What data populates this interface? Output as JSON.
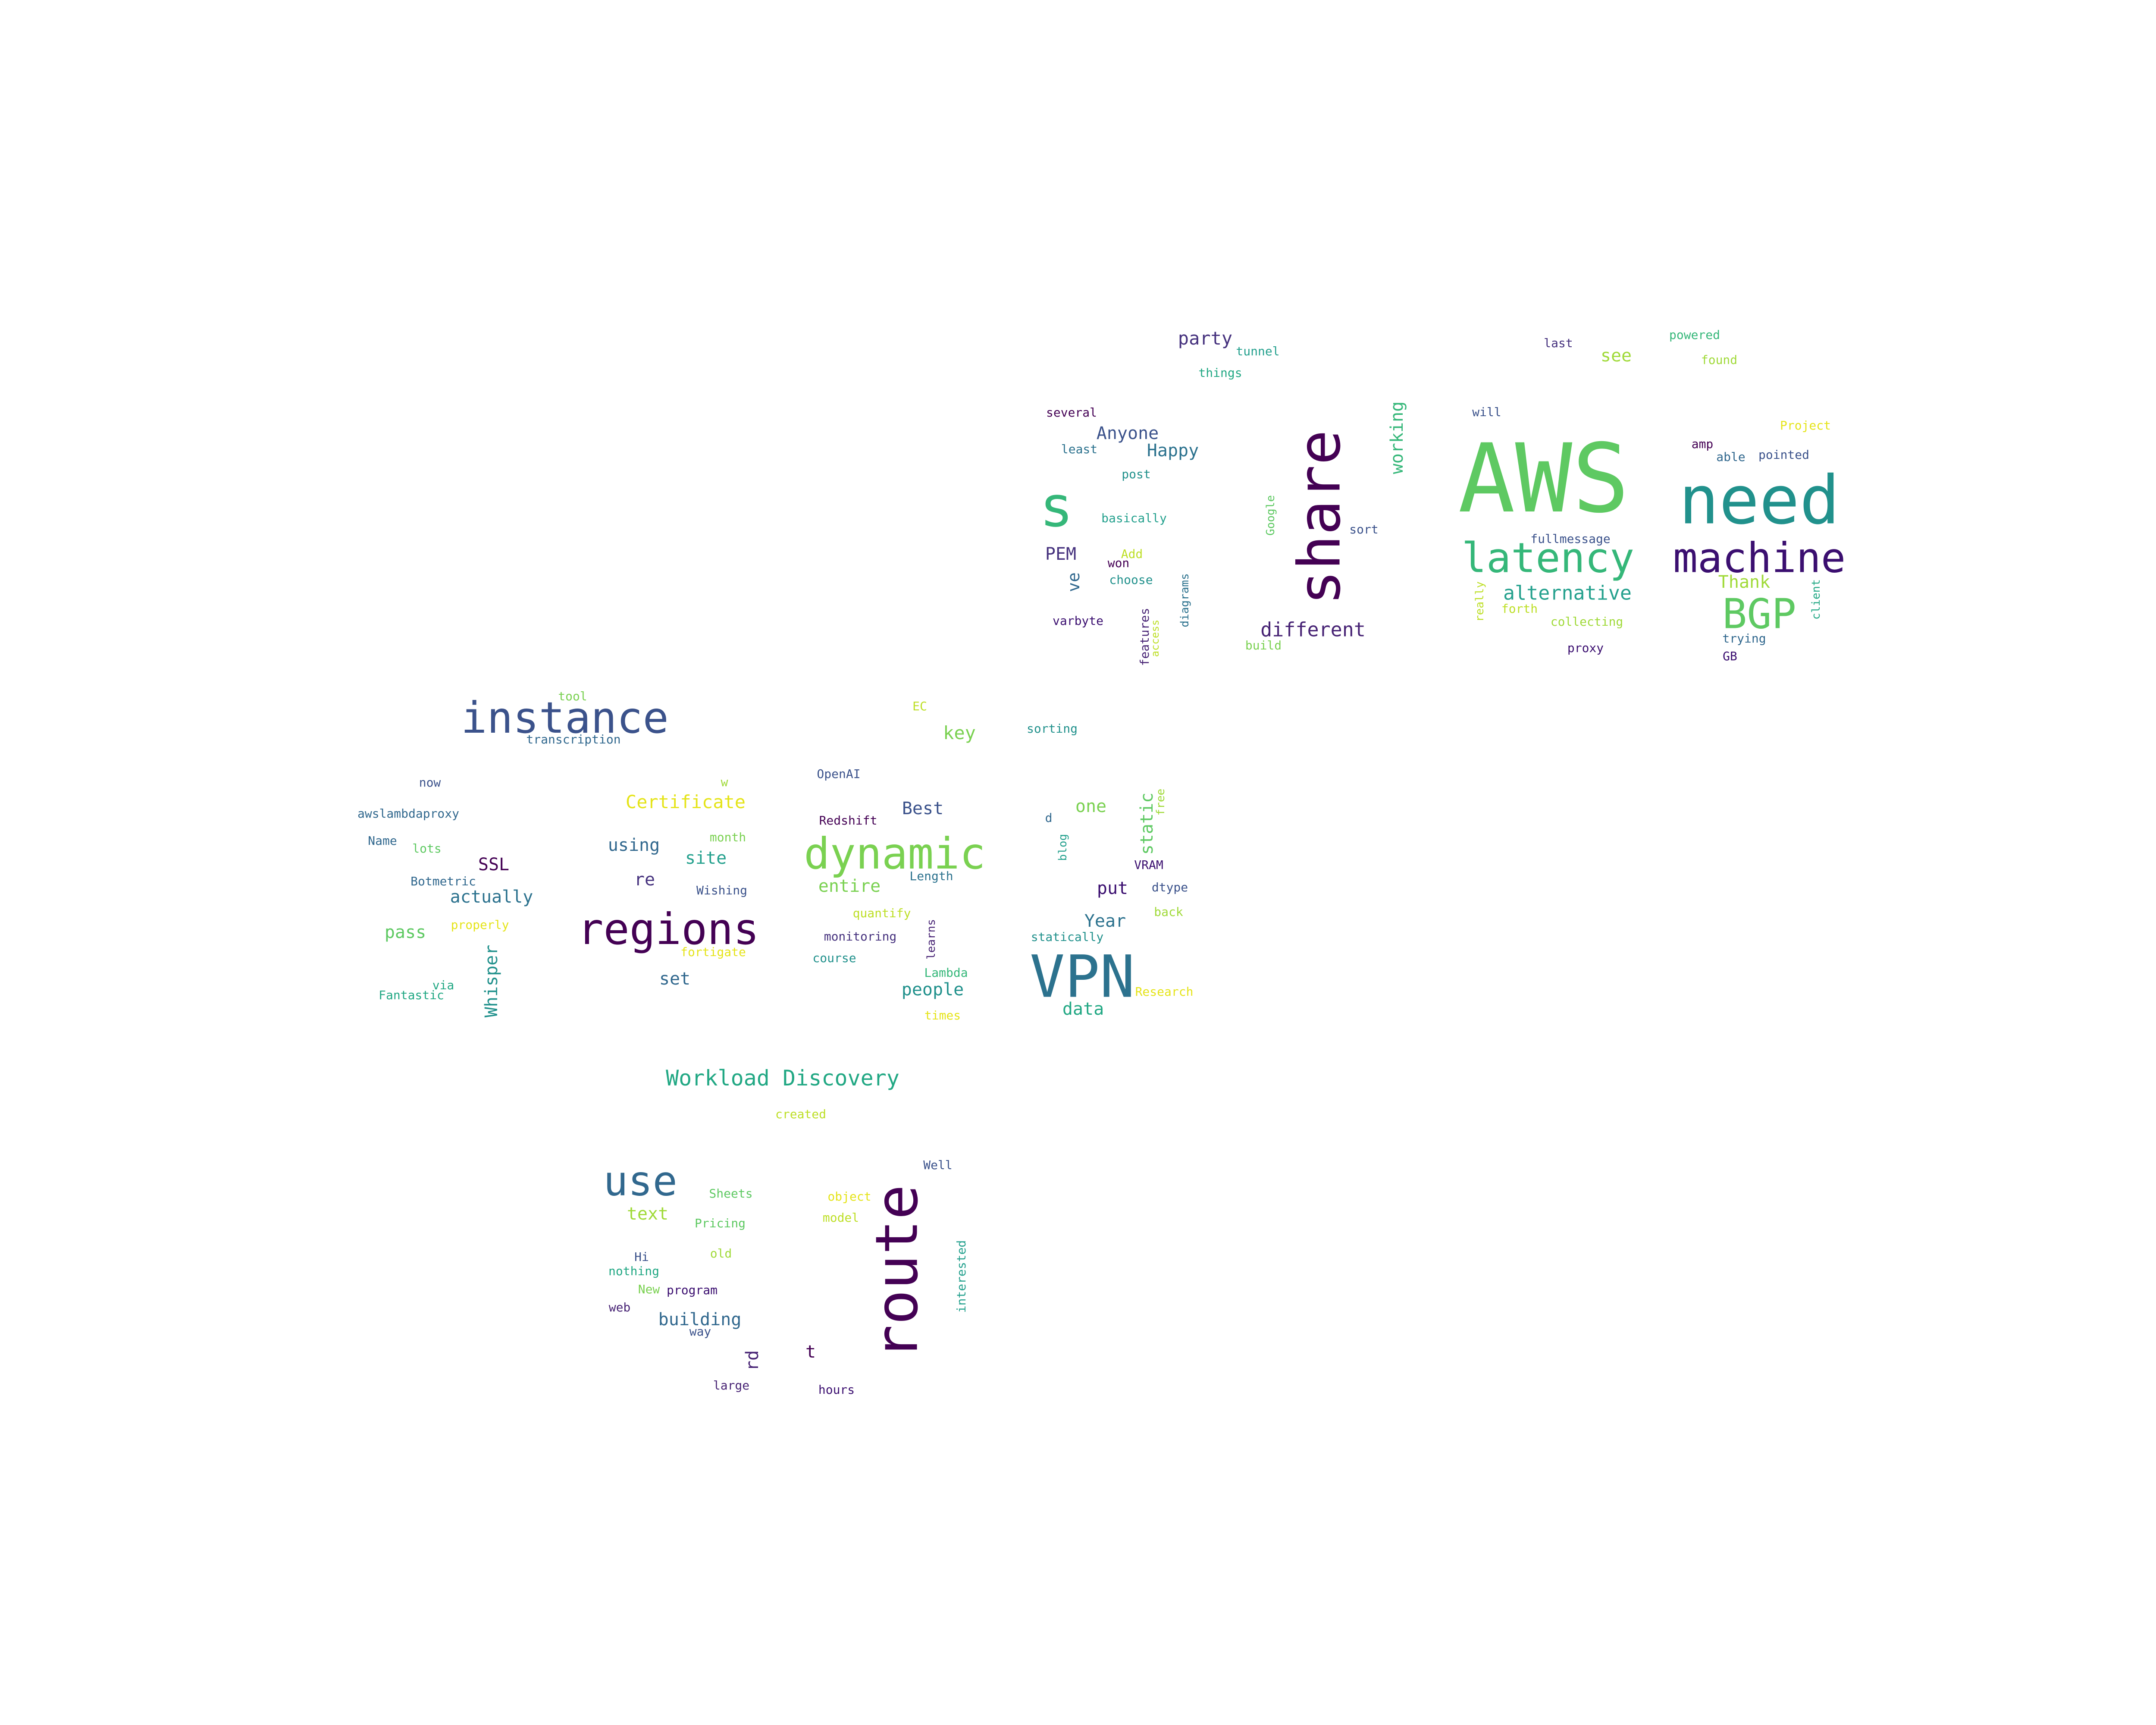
{
  "words": [
    {
      "text": "AWS",
      "color": "#5ec962"
    },
    {
      "text": "need",
      "color": "#21918c"
    },
    {
      "text": "share",
      "color": "#440154",
      "vertical": true
    },
    {
      "text": "route",
      "color": "#440154",
      "vertical": true
    },
    {
      "text": "VPN",
      "color": "#2c728e"
    },
    {
      "text": "machine",
      "color": "#3b0f70"
    },
    {
      "text": "regions",
      "color": "#440154"
    },
    {
      "text": "s",
      "color": "#35b779"
    },
    {
      "text": "dynamic",
      "color": "#7ad151"
    },
    {
      "text": "instance",
      "color": "#3b528b"
    },
    {
      "text": "latency",
      "color": "#35b779"
    },
    {
      "text": "BGP",
      "color": "#5ec962"
    },
    {
      "text": "use",
      "color": "#31688e"
    },
    {
      "text": "Workload Discovery",
      "color": "#22a884"
    },
    {
      "text": "alternative",
      "color": "#25a18e"
    },
    {
      "text": "different",
      "color": "#482475"
    },
    {
      "text": "party",
      "color": "#46327e"
    },
    {
      "text": "working",
      "color": "#35b779",
      "vertical": true
    },
    {
      "text": "Anyone",
      "color": "#3b528b"
    },
    {
      "text": "Happy",
      "color": "#2c728e"
    },
    {
      "text": "Certificate",
      "color": "#e5e419"
    },
    {
      "text": "key",
      "color": "#7ad151"
    },
    {
      "text": "see",
      "color": "#a0da39"
    },
    {
      "text": "Thank",
      "color": "#a0da39"
    },
    {
      "text": "using",
      "color": "#31688e"
    },
    {
      "text": "site",
      "color": "#25a18e"
    },
    {
      "text": "Best",
      "color": "#3b528b"
    },
    {
      "text": "one",
      "color": "#7ad151"
    },
    {
      "text": "static",
      "color": "#5ec962",
      "vertical": true
    },
    {
      "text": "entire",
      "color": "#7ad151"
    },
    {
      "text": "put",
      "color": "#3b0f70"
    },
    {
      "text": "SSL",
      "color": "#440154"
    },
    {
      "text": "actually",
      "color": "#2c728e"
    },
    {
      "text": "re",
      "color": "#46327e"
    },
    {
      "text": "Year",
      "color": "#2c728e"
    },
    {
      "text": "pass",
      "color": "#5ec962"
    },
    {
      "text": "Whisper",
      "color": "#21918c",
      "vertical": true
    },
    {
      "text": "set",
      "color": "#31688e"
    },
    {
      "text": "people",
      "color": "#21918c"
    },
    {
      "text": "data",
      "color": "#22a884"
    },
    {
      "text": "text",
      "color": "#a0da39"
    },
    {
      "text": "building",
      "color": "#31688e"
    },
    {
      "text": "PEM",
      "color": "#46327e"
    },
    {
      "text": "ve",
      "color": "#31688e",
      "vertical": true
    },
    {
      "text": "rd",
      "color": "#482475",
      "vertical": true
    },
    {
      "text": "t",
      "color": "#440154"
    },
    {
      "text": "tunnel",
      "color": "#25a18e"
    },
    {
      "text": "things",
      "color": "#22a884"
    },
    {
      "text": "several",
      "color": "#440154"
    },
    {
      "text": "least",
      "color": "#2c728e"
    },
    {
      "text": "post",
      "color": "#21918c"
    },
    {
      "text": "basically",
      "color": "#25a18e"
    },
    {
      "text": "Google",
      "color": "#5ec962",
      "vertical": true
    },
    {
      "text": "sort",
      "color": "#3b528b"
    },
    {
      "text": "won",
      "color": "#440154"
    },
    {
      "text": "Add",
      "color": "#bddf26"
    },
    {
      "text": "choose",
      "color": "#21918c"
    },
    {
      "text": "diagrams",
      "color": "#2c728e",
      "vertical": true
    },
    {
      "text": "varbyte",
      "color": "#3b0f70"
    },
    {
      "text": "features",
      "color": "#482475",
      "vertical": true
    },
    {
      "text": "access",
      "color": "#bddf26",
      "vertical": true
    },
    {
      "text": "build",
      "color": "#7ad151"
    },
    {
      "text": "last",
      "color": "#46327e"
    },
    {
      "text": "powered",
      "color": "#35b779"
    },
    {
      "text": "found",
      "color": "#a0da39"
    },
    {
      "text": "will",
      "color": "#3b528b"
    },
    {
      "text": "Project",
      "color": "#e5e419"
    },
    {
      "text": "amp",
      "color": "#440154"
    },
    {
      "text": "able",
      "color": "#31688e"
    },
    {
      "text": "pointed",
      "color": "#3b528b"
    },
    {
      "text": "fullmessage",
      "color": "#3b528b"
    },
    {
      "text": "really",
      "color": "#bddf26",
      "vertical": true
    },
    {
      "text": "forth",
      "color": "#bddf26"
    },
    {
      "text": "collecting",
      "color": "#a0da39"
    },
    {
      "text": "client",
      "color": "#22a884",
      "vertical": true
    },
    {
      "text": "trying",
      "color": "#31688e"
    },
    {
      "text": "proxy",
      "color": "#3b0f70"
    },
    {
      "text": "GB",
      "color": "#3b0f70"
    },
    {
      "text": "tool",
      "color": "#7ad151"
    },
    {
      "text": "transcription",
      "color": "#31688e"
    },
    {
      "text": "EC",
      "color": "#bddf26"
    },
    {
      "text": "sorting",
      "color": "#21918c"
    },
    {
      "text": "now",
      "color": "#3b528b"
    },
    {
      "text": "w",
      "color": "#a0da39"
    },
    {
      "text": "OpenAI",
      "color": "#3b528b"
    },
    {
      "text": "awslambdaproxy",
      "color": "#31688e"
    },
    {
      "text": "d",
      "color": "#31688e"
    },
    {
      "text": "free",
      "color": "#a0da39",
      "vertical": true
    },
    {
      "text": "Redshift",
      "color": "#440154"
    },
    {
      "text": "Name",
      "color": "#31688e"
    },
    {
      "text": "lots",
      "color": "#5ec962"
    },
    {
      "text": "month",
      "color": "#7ad151"
    },
    {
      "text": "blog",
      "color": "#25a18e",
      "vertical": true
    },
    {
      "text": "Length",
      "color": "#2c728e"
    },
    {
      "text": "VRAM",
      "color": "#3b0f70"
    },
    {
      "text": "Botmetric",
      "color": "#31688e"
    },
    {
      "text": "Wishing",
      "color": "#3b528b"
    },
    {
      "text": "dtype",
      "color": "#3b528b"
    },
    {
      "text": "properly",
      "color": "#e5e419"
    },
    {
      "text": "quantify",
      "color": "#bddf26"
    },
    {
      "text": "back",
      "color": "#a0da39"
    },
    {
      "text": "monitoring",
      "color": "#46327e"
    },
    {
      "text": "learns",
      "color": "#482475",
      "vertical": true
    },
    {
      "text": "fortigate",
      "color": "#e5e419"
    },
    {
      "text": "statically",
      "color": "#21918c"
    },
    {
      "text": "course",
      "color": "#21918c"
    },
    {
      "text": "via",
      "color": "#22a884"
    },
    {
      "text": "Fantastic",
      "color": "#22a884"
    },
    {
      "text": "Lambda",
      "color": "#35b779"
    },
    {
      "text": "Research",
      "color": "#e5e419"
    },
    {
      "text": "times",
      "color": "#e5e419"
    },
    {
      "text": "created",
      "color": "#bddf26"
    },
    {
      "text": "Well",
      "color": "#3b528b"
    },
    {
      "text": "Sheets",
      "color": "#5ec962"
    },
    {
      "text": "object",
      "color": "#e5e419"
    },
    {
      "text": "Pricing",
      "color": "#5ec962"
    },
    {
      "text": "model",
      "color": "#bddf26"
    },
    {
      "text": "Hi",
      "color": "#3b528b"
    },
    {
      "text": "old",
      "color": "#a0da39"
    },
    {
      "text": "nothing",
      "color": "#22a884"
    },
    {
      "text": "interested",
      "color": "#25a18e",
      "vertical": true
    },
    {
      "text": "New",
      "color": "#7ad151"
    },
    {
      "text": "program",
      "color": "#3b0f70"
    },
    {
      "text": "web",
      "color": "#482475"
    },
    {
      "text": "way",
      "color": "#3b528b"
    },
    {
      "text": "large",
      "color": "#482475"
    },
    {
      "text": "hours",
      "color": "#3b0f70"
    }
  ]
}
